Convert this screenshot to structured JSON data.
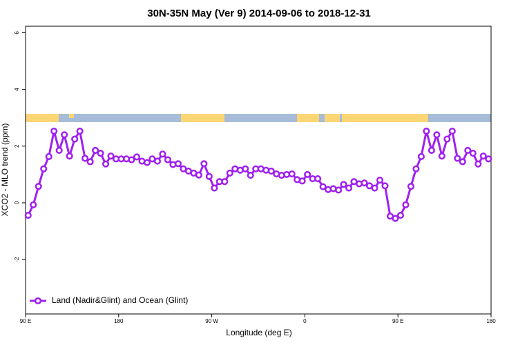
{
  "chart_data": {
    "type": "line",
    "title": "30N-35N May (Ver 9)   2014-09-06 to 2018-12-31",
    "x_label": "Longitude (deg E)",
    "y_label": "XCO2 - MLO trend (ppm)",
    "x": [
      92.5,
      97.5,
      102.5,
      107.5,
      112.5,
      117.5,
      122.5,
      127.5,
      132.5,
      137.5,
      142.5,
      147.5,
      152.5,
      157.5,
      162.5,
      167.5,
      172.5,
      177.5,
      182.5,
      187.5,
      192.5,
      197.5,
      202.5,
      207.5,
      212.5,
      217.5,
      222.5,
      227.5,
      232.5,
      237.5,
      242.5,
      247.5,
      252.5,
      257.5,
      262.5,
      267.5,
      272.5,
      277.5,
      282.5,
      287.5,
      292.5,
      297.5,
      302.5,
      307.5,
      312.5,
      317.5,
      322.5,
      327.5,
      332.5,
      337.5,
      342.5,
      347.5,
      352.5,
      357.5,
      362.5,
      367.5,
      372.5,
      377.5,
      382.5,
      387.5,
      392.5,
      397.5,
      402.5,
      407.5,
      412.5,
      417.5,
      422.5,
      427.5,
      432.5,
      437.5,
      442.5,
      447.5,
      452.5,
      457.5,
      462.5,
      467.5,
      472.5,
      477.5,
      482.5,
      487.5,
      492.5,
      497.5,
      502.5,
      507.5,
      512.5,
      517.5,
      522.5,
      527.5,
      532.5,
      537.5
    ],
    "series": [
      {
        "name": "Land (Nadir&Glint) and Ocean (Glint)",
        "color": "#a020f0",
        "values": [
          -0.44,
          -0.07,
          0.58,
          1.2,
          1.63,
          2.53,
          1.85,
          2.4,
          1.65,
          2.25,
          2.53,
          1.57,
          1.45,
          1.85,
          1.75,
          1.37,
          1.65,
          1.55,
          1.55,
          1.55,
          1.52,
          1.62,
          1.47,
          1.42,
          1.55,
          1.47,
          1.72,
          1.52,
          1.35,
          1.38,
          1.2,
          1.12,
          1.05,
          0.98,
          1.38,
          0.93,
          0.52,
          0.75,
          0.75,
          1.05,
          1.2,
          1.15,
          1.2,
          0.97,
          1.2,
          1.2,
          1.15,
          1.12,
          1.02,
          0.97,
          1.0,
          1.02,
          0.82,
          0.77,
          1.0,
          0.85,
          0.85,
          0.57,
          0.47,
          0.5,
          0.45,
          0.65,
          0.52,
          0.75,
          0.67,
          0.7,
          0.6,
          0.52,
          0.8,
          0.6,
          -0.47,
          -0.55,
          -0.44,
          -0.07,
          0.58,
          1.2,
          1.63,
          2.53,
          1.85,
          2.4,
          1.65,
          2.25,
          2.53,
          1.57,
          1.45,
          1.85,
          1.75,
          1.37,
          1.65,
          1.55
        ]
      }
    ],
    "xlim": [
      90,
      540
    ],
    "xticks": [
      {
        "value": 90,
        "label": "90 E"
      },
      180,
      {
        "value": 270,
        "label": "90 W"
      },
      {
        "value": 360,
        "label": "0"
      },
      {
        "value": 450,
        "label": "90 E"
      },
      {
        "value": 540,
        "label": "180"
      }
    ],
    "ylim": [
      -3.92,
      6.23
    ],
    "yticks": [
      -2,
      0,
      2,
      4,
      6
    ],
    "legend": "bottom-left"
  }
}
